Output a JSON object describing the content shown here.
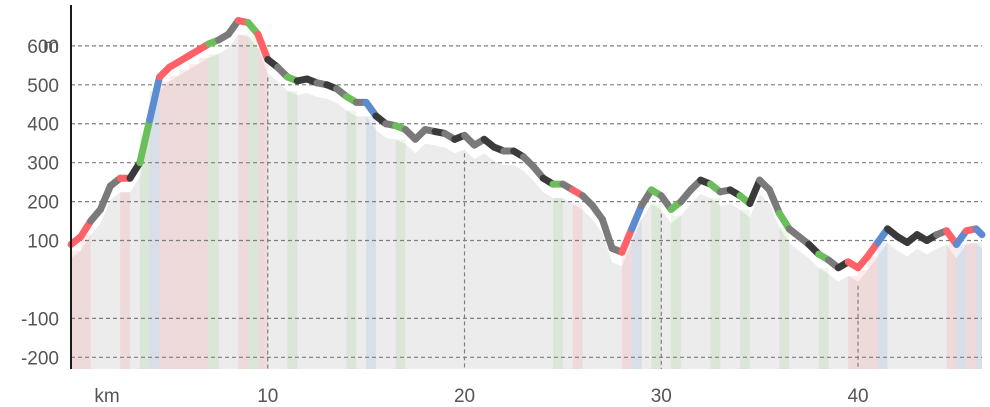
{
  "chart_data": {
    "type": "area",
    "title": "",
    "xlabel": "km",
    "ylabel": "m",
    "xlim": [
      0,
      46.3
    ],
    "ylim": [
      -230,
      705
    ],
    "y_ticks": [
      -200,
      -100,
      100,
      200,
      300,
      400,
      500,
      600
    ],
    "y_tick_labels": [
      "-200",
      "-100",
      "100",
      "200",
      "300",
      "400",
      "500",
      "600"
    ],
    "x_ticks": [
      10,
      20,
      30,
      40
    ],
    "x_tick_labels": [
      "10",
      "20",
      "30",
      "40"
    ],
    "grid": true,
    "legend": "none",
    "colors": {
      "background_fill": "#ececec",
      "climb_steep": "#ff6166",
      "climb_moderate": "#6bbf5a",
      "descent": "#5b8bd0",
      "flat_dark": "#3a3a3a",
      "flat_grey": "#7a7a7a"
    },
    "series": [
      {
        "values": [
          {
            "x": 0.0,
            "y": 90,
            "c": "climb_steep"
          },
          {
            "x": 0.5,
            "y": 110,
            "c": "climb_steep"
          },
          {
            "x": 1.0,
            "y": 150,
            "c": "flat_grey"
          },
          {
            "x": 1.5,
            "y": 180,
            "c": "flat_grey"
          },
          {
            "x": 2.0,
            "y": 240,
            "c": "flat_grey"
          },
          {
            "x": 2.5,
            "y": 260,
            "c": "climb_steep"
          },
          {
            "x": 3.0,
            "y": 260,
            "c": "flat_dark"
          },
          {
            "x": 3.5,
            "y": 300,
            "c": "climb_moderate"
          },
          {
            "x": 4.0,
            "y": 410,
            "c": "descent"
          },
          {
            "x": 4.5,
            "y": 520,
            "c": "climb_steep"
          },
          {
            "x": 5.0,
            "y": 545,
            "c": "climb_steep"
          },
          {
            "x": 5.5,
            "y": 560,
            "c": "climb_steep"
          },
          {
            "x": 6.0,
            "y": 575,
            "c": "climb_steep"
          },
          {
            "x": 6.5,
            "y": 590,
            "c": "climb_steep"
          },
          {
            "x": 7.0,
            "y": 605,
            "c": "climb_moderate"
          },
          {
            "x": 7.5,
            "y": 615,
            "c": "flat_grey"
          },
          {
            "x": 8.0,
            "y": 630,
            "c": "flat_grey"
          },
          {
            "x": 8.5,
            "y": 665,
            "c": "climb_steep"
          },
          {
            "x": 9.0,
            "y": 660,
            "c": "climb_moderate"
          },
          {
            "x": 9.5,
            "y": 630,
            "c": "climb_steep"
          },
          {
            "x": 10.0,
            "y": 565,
            "c": "flat_dark"
          },
          {
            "x": 10.5,
            "y": 545,
            "c": "flat_grey"
          },
          {
            "x": 11.0,
            "y": 520,
            "c": "climb_moderate"
          },
          {
            "x": 11.5,
            "y": 510,
            "c": "flat_dark"
          },
          {
            "x": 12.0,
            "y": 515,
            "c": "flat_dark"
          },
          {
            "x": 12.5,
            "y": 505,
            "c": "flat_grey"
          },
          {
            "x": 13.0,
            "y": 500,
            "c": "flat_dark"
          },
          {
            "x": 13.5,
            "y": 490,
            "c": "flat_grey"
          },
          {
            "x": 14.0,
            "y": 470,
            "c": "climb_moderate"
          },
          {
            "x": 14.5,
            "y": 455,
            "c": "flat_grey"
          },
          {
            "x": 15.0,
            "y": 455,
            "c": "descent"
          },
          {
            "x": 15.5,
            "y": 420,
            "c": "flat_dark"
          },
          {
            "x": 16.0,
            "y": 400,
            "c": "flat_grey"
          },
          {
            "x": 16.5,
            "y": 395,
            "c": "climb_moderate"
          },
          {
            "x": 17.0,
            "y": 385,
            "c": "flat_grey"
          },
          {
            "x": 17.5,
            "y": 360,
            "c": "flat_grey"
          },
          {
            "x": 18.0,
            "y": 385,
            "c": "flat_grey"
          },
          {
            "x": 18.5,
            "y": 380,
            "c": "flat_dark"
          },
          {
            "x": 19.0,
            "y": 375,
            "c": "flat_grey"
          },
          {
            "x": 19.5,
            "y": 360,
            "c": "flat_dark"
          },
          {
            "x": 20.0,
            "y": 370,
            "c": "flat_grey"
          },
          {
            "x": 20.5,
            "y": 345,
            "c": "flat_grey"
          },
          {
            "x": 21.0,
            "y": 360,
            "c": "flat_dark"
          },
          {
            "x": 21.5,
            "y": 340,
            "c": "flat_dark"
          },
          {
            "x": 22.0,
            "y": 330,
            "c": "flat_grey"
          },
          {
            "x": 22.5,
            "y": 330,
            "c": "flat_dark"
          },
          {
            "x": 23.0,
            "y": 315,
            "c": "flat_grey"
          },
          {
            "x": 23.5,
            "y": 290,
            "c": "flat_grey"
          },
          {
            "x": 24.0,
            "y": 260,
            "c": "flat_dark"
          },
          {
            "x": 24.5,
            "y": 245,
            "c": "climb_moderate"
          },
          {
            "x": 25.0,
            "y": 245,
            "c": "flat_grey"
          },
          {
            "x": 25.5,
            "y": 230,
            "c": "climb_steep"
          },
          {
            "x": 26.0,
            "y": 215,
            "c": "flat_grey"
          },
          {
            "x": 26.5,
            "y": 190,
            "c": "flat_grey"
          },
          {
            "x": 27.0,
            "y": 155,
            "c": "flat_grey"
          },
          {
            "x": 27.5,
            "y": 80,
            "c": "flat_grey"
          },
          {
            "x": 28.0,
            "y": 70,
            "c": "climb_steep"
          },
          {
            "x": 28.5,
            "y": 130,
            "c": "descent"
          },
          {
            "x": 29.0,
            "y": 190,
            "c": "flat_grey"
          },
          {
            "x": 29.5,
            "y": 230,
            "c": "climb_moderate"
          },
          {
            "x": 30.0,
            "y": 215,
            "c": "flat_grey"
          },
          {
            "x": 30.5,
            "y": 180,
            "c": "climb_moderate"
          },
          {
            "x": 31.0,
            "y": 200,
            "c": "flat_grey"
          },
          {
            "x": 31.5,
            "y": 230,
            "c": "flat_grey"
          },
          {
            "x": 32.0,
            "y": 255,
            "c": "flat_dark"
          },
          {
            "x": 32.5,
            "y": 245,
            "c": "climb_moderate"
          },
          {
            "x": 33.0,
            "y": 225,
            "c": "flat_grey"
          },
          {
            "x": 33.5,
            "y": 230,
            "c": "flat_dark"
          },
          {
            "x": 34.0,
            "y": 215,
            "c": "climb_moderate"
          },
          {
            "x": 34.5,
            "y": 195,
            "c": "flat_dark"
          },
          {
            "x": 35.0,
            "y": 255,
            "c": "flat_grey"
          },
          {
            "x": 35.5,
            "y": 230,
            "c": "flat_grey"
          },
          {
            "x": 36.0,
            "y": 170,
            "c": "climb_moderate"
          },
          {
            "x": 36.5,
            "y": 130,
            "c": "flat_grey"
          },
          {
            "x": 37.0,
            "y": 110,
            "c": "flat_grey"
          },
          {
            "x": 37.5,
            "y": 90,
            "c": "flat_dark"
          },
          {
            "x": 38.0,
            "y": 65,
            "c": "climb_moderate"
          },
          {
            "x": 38.5,
            "y": 50,
            "c": "flat_grey"
          },
          {
            "x": 39.0,
            "y": 30,
            "c": "flat_dark"
          },
          {
            "x": 39.5,
            "y": 45,
            "c": "climb_steep"
          },
          {
            "x": 40.0,
            "y": 30,
            "c": "climb_steep"
          },
          {
            "x": 40.5,
            "y": 60,
            "c": "climb_steep"
          },
          {
            "x": 41.0,
            "y": 95,
            "c": "descent"
          },
          {
            "x": 41.5,
            "y": 130,
            "c": "flat_dark"
          },
          {
            "x": 42.0,
            "y": 110,
            "c": "flat_dark"
          },
          {
            "x": 42.5,
            "y": 95,
            "c": "flat_dark"
          },
          {
            "x": 43.0,
            "y": 115,
            "c": "flat_dark"
          },
          {
            "x": 43.5,
            "y": 100,
            "c": "flat_dark"
          },
          {
            "x": 44.0,
            "y": 115,
            "c": "flat_grey"
          },
          {
            "x": 44.5,
            "y": 125,
            "c": "climb_steep"
          },
          {
            "x": 45.0,
            "y": 90,
            "c": "descent"
          },
          {
            "x": 45.5,
            "y": 125,
            "c": "climb_steep"
          },
          {
            "x": 46.0,
            "y": 130,
            "c": "descent"
          },
          {
            "x": 46.3,
            "y": 115,
            "c": "descent"
          }
        ]
      }
    ]
  }
}
